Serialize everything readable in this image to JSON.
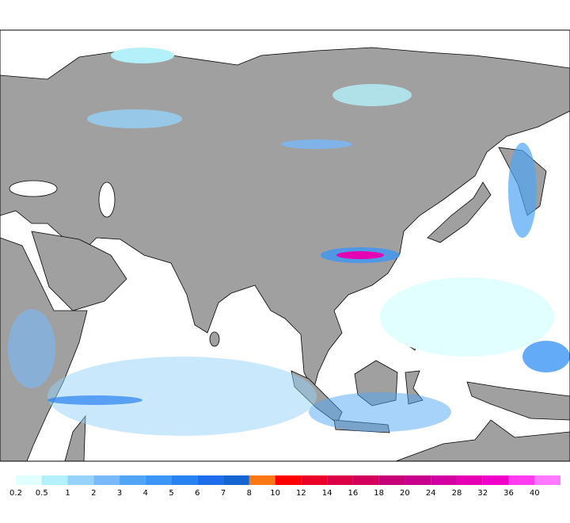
{
  "colorbar": {
    "labels": [
      0.2,
      0.5,
      1,
      2,
      3,
      4,
      5,
      6,
      7,
      8,
      10,
      12,
      14,
      16,
      18,
      20,
      24,
      28,
      32,
      36,
      40
    ],
    "colors": [
      "#e1ffff",
      "#b4f0fa",
      "#96d2fa",
      "#78b9fa",
      "#50a5f5",
      "#3c96f5",
      "#2882f0",
      "#1e6eeb",
      "#1464d2",
      "#fa7814",
      "#ff0000",
      "#eb0028",
      "#dc0046",
      "#d2005a",
      "#c80078",
      "#c8008c",
      "#d200a0",
      "#e600b4",
      "#f000c8",
      "#ff3cf0",
      "#ff78ff"
    ]
  }
}
